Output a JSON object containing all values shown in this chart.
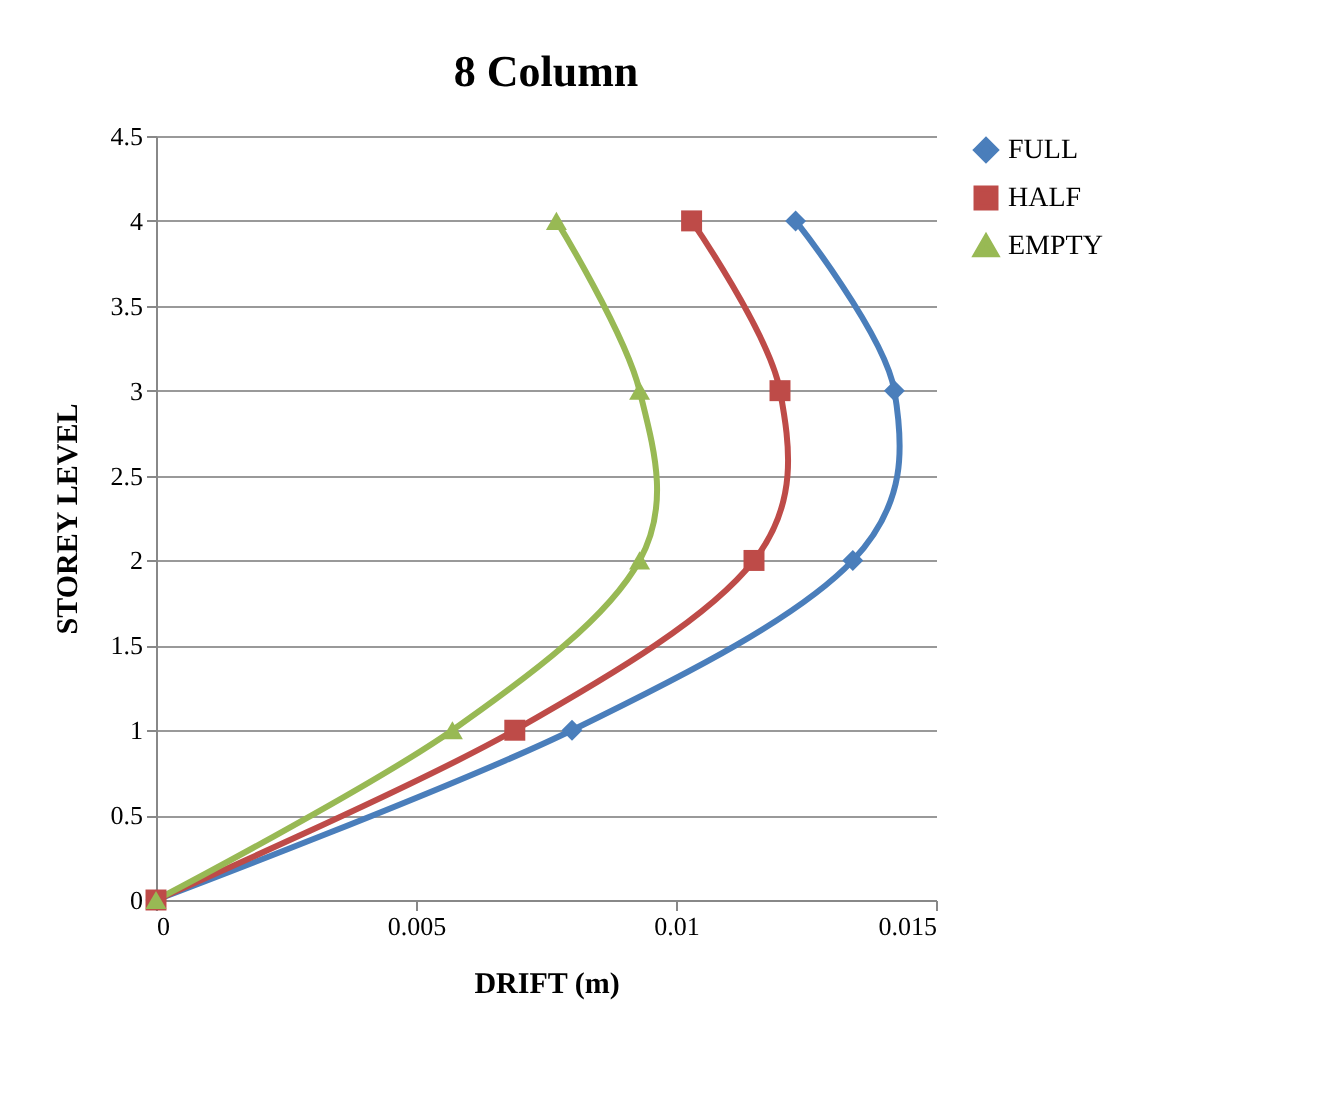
{
  "chart_data": {
    "type": "line",
    "title": "8 Column",
    "xlabel": "DRIFT (m)",
    "ylabel": "STOREY LEVEL",
    "xlim": [
      0,
      0.015
    ],
    "xticks": [
      0,
      0.005,
      0.01,
      0.015
    ],
    "ylim": [
      0,
      4.5
    ],
    "yticks": [
      0,
      0.5,
      1,
      1.5,
      2,
      2.5,
      3,
      3.5,
      4,
      4.5
    ],
    "grid": "y",
    "legend": "right",
    "line_style": "solid",
    "series": [
      {
        "name": "FULL",
        "color": "#4a7ebb",
        "marker": "diamond",
        "x": [
          0,
          0.008,
          0.0134,
          0.0142,
          0.0123
        ],
        "values": [
          0,
          1,
          2,
          3,
          4
        ]
      },
      {
        "name": "HALF",
        "color": "#be4b48",
        "marker": "square",
        "x": [
          0,
          0.0069,
          0.0115,
          0.012,
          0.0103
        ],
        "values": [
          0,
          1,
          2,
          3,
          4
        ]
      },
      {
        "name": "EMPTY",
        "color": "#98b954",
        "marker": "triangle",
        "x": [
          0,
          0.0057,
          0.0093,
          0.0093,
          0.0077
        ],
        "values": [
          0,
          1,
          2,
          3,
          4
        ]
      }
    ]
  }
}
